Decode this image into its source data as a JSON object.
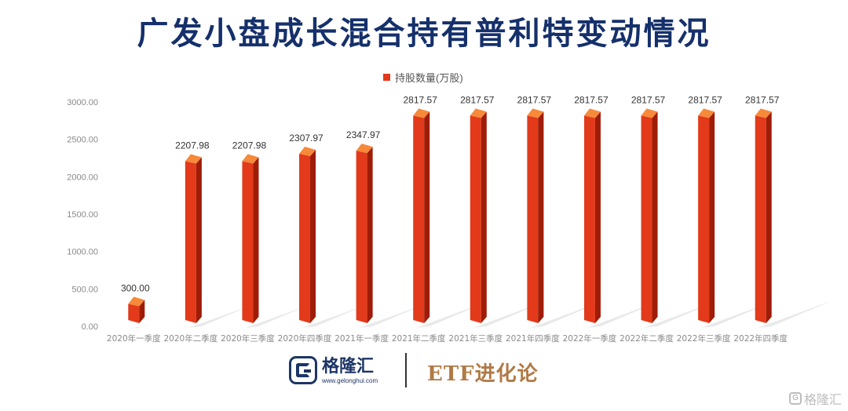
{
  "title": "广发小盘成长混合持有普利特变动情况",
  "colors": {
    "bar_front": "#e23a1a",
    "bar_side": "#9e1c08",
    "bar_top": "#f6893a",
    "title": "#15306b"
  },
  "chart_data": {
    "type": "bar",
    "title": "广发小盘成长混合持有普利特变动情况",
    "categories": [
      "2020年一季度",
      "2020年二季度",
      "2020年三季度",
      "2020年四季度",
      "2021年一季度",
      "2021年二季度",
      "2021年三季度",
      "2021年四季度",
      "2022年一季度",
      "2022年二季度",
      "2022年三季度",
      "2022年四季度"
    ],
    "series": [
      {
        "name": "持股数量(万股)",
        "values": [
          300.0,
          2207.98,
          2207.98,
          2307.97,
          2347.97,
          2817.57,
          2817.57,
          2817.57,
          2817.57,
          2817.57,
          2817.57,
          2817.57
        ]
      }
    ],
    "data_labels": [
      "300.00",
      "2207.98",
      "2207.98",
      "2307.97",
      "2347.97",
      "2817.57",
      "2817.57",
      "2817.57",
      "2817.57",
      "2817.57",
      "2817.57",
      "2817.57"
    ],
    "yticks": [
      "0.00",
      "500.00",
      "1000.00",
      "1500.00",
      "2000.00",
      "2500.00",
      "3000.00"
    ],
    "ylim": [
      0,
      3000
    ],
    "grid": false,
    "legend": "top-center"
  },
  "footer": {
    "logo_text": "格隆汇",
    "logo_url": "www.gelonghui.com",
    "brand_text": "ETF进化论"
  },
  "watermark": {
    "icon": "G",
    "text": "格隆汇"
  }
}
